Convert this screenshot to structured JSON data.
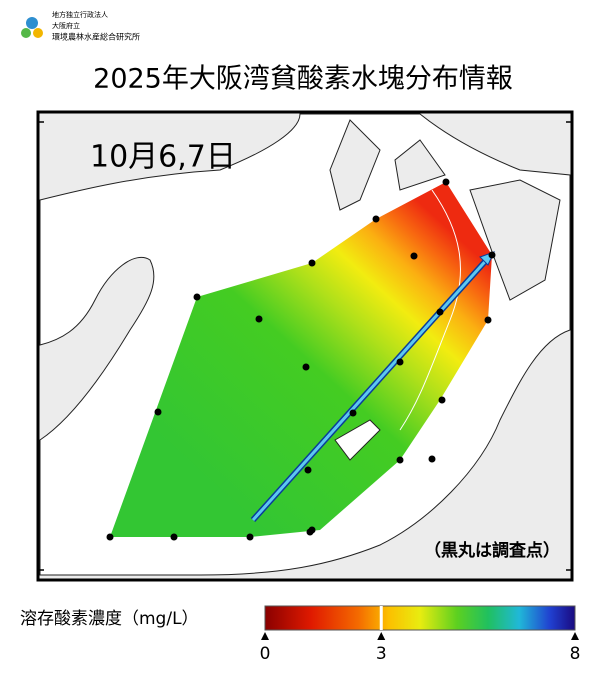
{
  "header": {
    "org_lines": [
      "地方独立行政法人",
      "大阪府立",
      "環境農林水産総合研究所"
    ]
  },
  "title": "2025年大阪湾貧酸素水塊分布情報",
  "map": {
    "date": "10月6,7日",
    "note": "（黒丸は調査点）"
  },
  "colorbar": {
    "label": "溶存酸素濃度（mg/L）",
    "range": [
      0,
      8
    ],
    "ticks": [
      0,
      3,
      8
    ]
  }
}
